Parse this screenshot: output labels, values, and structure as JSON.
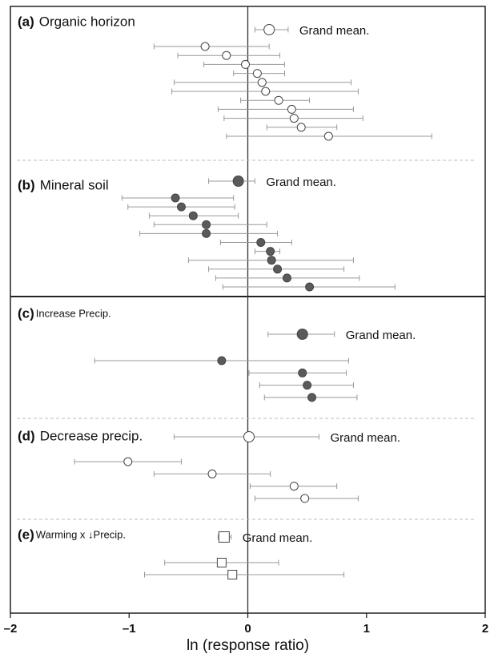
{
  "chart_data": {
    "type": "forest",
    "xlabel": "ln (response ratio)",
    "xlim": [
      -2,
      2
    ],
    "xticks": [
      {
        "value": -2,
        "label": "–2"
      },
      {
        "value": -1,
        "label": "–1"
      },
      0,
      1,
      2
    ],
    "panels": [
      {
        "tag": "(a)",
        "label": "Organic horizon",
        "marker": "circle",
        "color": "#ffffff",
        "grand_mean": {
          "label": "Grand mean.",
          "x": 0.18,
          "lo": 0.06,
          "hi": 0.34
        },
        "studies": [
          {
            "x": -0.36,
            "lo": -0.79,
            "hi": 0.18
          },
          {
            "x": -0.18,
            "lo": -0.59,
            "hi": 0.27
          },
          {
            "x": -0.02,
            "lo": -0.37,
            "hi": 0.31
          },
          {
            "x": 0.08,
            "lo": -0.12,
            "hi": 0.31
          },
          {
            "x": 0.12,
            "lo": -0.62,
            "hi": 0.87
          },
          {
            "x": 0.15,
            "lo": -0.64,
            "hi": 0.93
          },
          {
            "x": 0.26,
            "lo": -0.06,
            "hi": 0.52
          },
          {
            "x": 0.37,
            "lo": -0.25,
            "hi": 0.89
          },
          {
            "x": 0.39,
            "lo": -0.2,
            "hi": 0.97
          },
          {
            "x": 0.45,
            "lo": 0.16,
            "hi": 0.75
          },
          {
            "x": 0.68,
            "lo": -0.18,
            "hi": 1.55
          }
        ]
      },
      {
        "tag": "(b)",
        "label": "Mineral soil",
        "marker": "circle",
        "color": "#5a5a5a",
        "grand_mean": {
          "label": "Grand mean.",
          "x": -0.08,
          "lo": -0.33,
          "hi": 0.06
        },
        "studies": [
          {
            "x": -0.61,
            "lo": -1.06,
            "hi": -0.12
          },
          {
            "x": -0.56,
            "lo": -1.01,
            "hi": -0.11
          },
          {
            "x": -0.46,
            "lo": -0.83,
            "hi": -0.08
          },
          {
            "x": -0.35,
            "lo": -0.79,
            "hi": 0.16
          },
          {
            "x": -0.35,
            "lo": -0.91,
            "hi": 0.25
          },
          {
            "x": 0.11,
            "lo": -0.23,
            "hi": 0.37
          },
          {
            "x": 0.19,
            "lo": 0.06,
            "hi": 0.27
          },
          {
            "x": 0.2,
            "lo": -0.5,
            "hi": 0.89
          },
          {
            "x": 0.25,
            "lo": -0.33,
            "hi": 0.81
          },
          {
            "x": 0.33,
            "lo": -0.27,
            "hi": 0.94
          },
          {
            "x": 0.52,
            "lo": -0.21,
            "hi": 1.24
          }
        ]
      },
      {
        "tag": "(c)",
        "label": "Increase Precip.",
        "marker": "circle",
        "color": "#5a5a5a",
        "grand_mean": {
          "label": "Grand mean.",
          "x": 0.46,
          "lo": 0.17,
          "hi": 0.73
        },
        "studies": [
          {
            "x": -0.22,
            "lo": -1.29,
            "hi": 0.85
          },
          {
            "x": 0.46,
            "lo": 0.01,
            "hi": 0.83
          },
          {
            "x": 0.5,
            "lo": 0.1,
            "hi": 0.89
          },
          {
            "x": 0.54,
            "lo": 0.14,
            "hi": 0.92
          }
        ]
      },
      {
        "tag": "(d)",
        "label": "Decrease precip.",
        "marker": "circle",
        "color": "#ffffff",
        "grand_mean": {
          "label": "Grand mean.",
          "x": 0.01,
          "lo": -0.62,
          "hi": 0.6
        },
        "studies": [
          {
            "x": -1.01,
            "lo": -1.46,
            "hi": -0.56
          },
          {
            "x": -0.3,
            "lo": -0.79,
            "hi": 0.19
          },
          {
            "x": 0.39,
            "lo": 0.02,
            "hi": 0.75
          },
          {
            "x": 0.48,
            "lo": 0.06,
            "hi": 0.93
          }
        ]
      },
      {
        "tag": "(e)",
        "label": "Warming x ↓Precip.",
        "marker": "square",
        "color": "#ffffff",
        "grand_mean": {
          "label": "Grand mean.",
          "x": -0.2,
          "lo": -0.25,
          "hi": -0.14
        },
        "studies": [
          {
            "x": -0.22,
            "lo": -0.7,
            "hi": 0.26
          },
          {
            "x": -0.13,
            "lo": -0.87,
            "hi": 0.81
          }
        ]
      }
    ]
  }
}
